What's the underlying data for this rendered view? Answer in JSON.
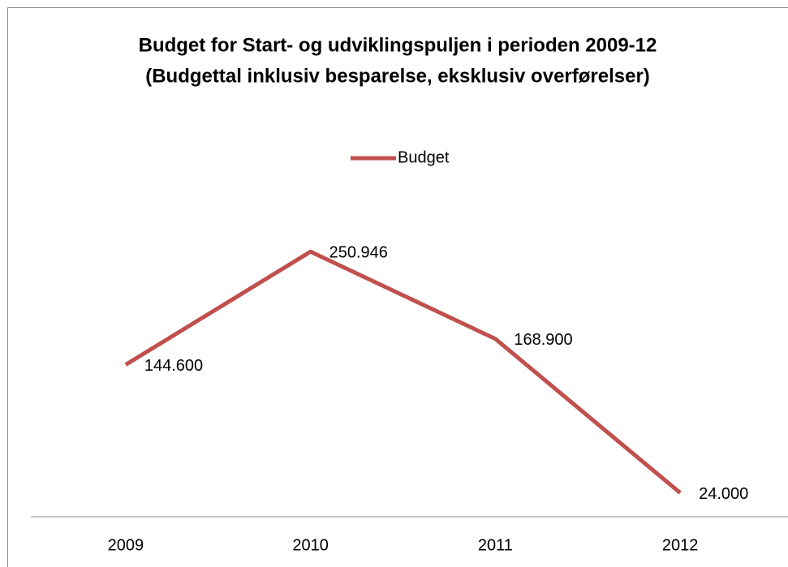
{
  "chart_data": {
    "type": "line",
    "title": "Budget for Start- og udviklingspuljen i perioden 2009-12",
    "subtitle": "(Budgettal inklusiv besparelse, eksklusiv overførelser)",
    "categories": [
      "2009",
      "2010",
      "2011",
      "2012"
    ],
    "series": [
      {
        "name": "Budget",
        "color": "#c0504d",
        "values": [
          144600,
          250946,
          168900,
          24000
        ],
        "value_labels": [
          "144.600",
          "250.946",
          "168.900",
          "24.000"
        ]
      }
    ],
    "ylim": [
      0,
      300000
    ],
    "legend": "top"
  }
}
